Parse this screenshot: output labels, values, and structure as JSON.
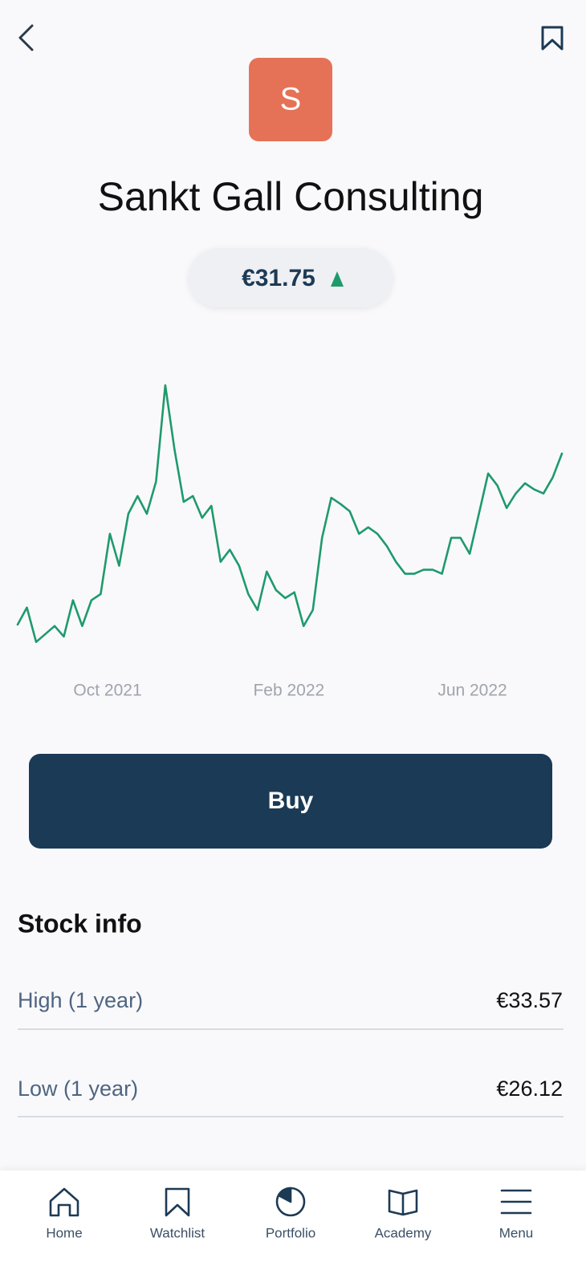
{
  "header": {
    "logo_letter": "S",
    "company_name": "Sankt Gall Consulting",
    "price": "€31.75"
  },
  "chart_data": {
    "type": "line",
    "color": "#1f9a6b",
    "values": [
      26.76,
      27.23,
      26.28,
      26.5,
      26.72,
      26.43,
      27.43,
      26.72,
      27.43,
      27.6,
      29.26,
      28.38,
      29.81,
      30.3,
      29.81,
      30.7,
      33.35,
      31.58,
      30.14,
      30.3,
      29.7,
      30.03,
      28.49,
      28.82,
      28.38,
      27.6,
      27.16,
      28.22,
      27.71,
      27.49,
      27.65,
      26.72,
      27.16,
      29.15,
      30.25,
      30.08,
      29.88,
      29.26,
      29.44,
      29.26,
      28.93,
      28.49,
      28.16,
      28.16,
      28.27,
      28.27,
      28.16,
      29.15,
      29.15,
      28.71,
      29.81,
      30.92,
      30.59,
      29.97,
      30.37,
      30.65,
      30.48,
      30.37,
      30.81,
      31.47
    ],
    "ylim": [
      26,
      34
    ],
    "xticks": [
      {
        "value": 9.75,
        "label": "Oct 2021"
      },
      {
        "value": 29.4,
        "label": "Feb 2022"
      },
      {
        "value": 49.3,
        "label": "Jun 2022"
      }
    ]
  },
  "button": {
    "label": "Buy"
  },
  "stock_info": {
    "title": "Stock info",
    "rows": [
      [
        "High (1 year)",
        "€33.57"
      ],
      [
        "Low (1 year)",
        "€26.12"
      ]
    ]
  },
  "nav": {
    "items": [
      "Home",
      "Watchlist",
      "Portfolio",
      "Academy",
      "Menu"
    ]
  }
}
